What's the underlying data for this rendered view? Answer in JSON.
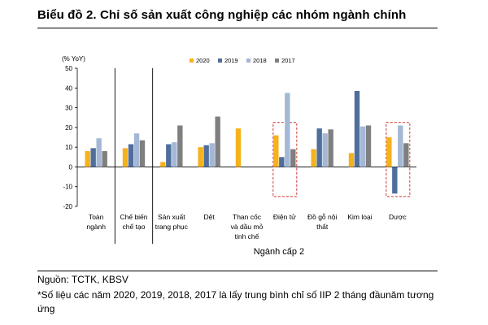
{
  "title": "Biểu đồ 2. Chỉ số sản xuất công nghiệp các nhóm ngành chính",
  "source": "Nguồn: TCTK, KBSV",
  "note": "*Số liệu các năm 2020, 2019, 2018, 2017 là lấy trung bình chỉ số IIP 2 tháng đầunăm tương ứng",
  "chart_data": {
    "type": "bar",
    "ylabel": "(% YoY)",
    "xlabel": "Ngành cấp 2",
    "ylim": [
      -20,
      50
    ],
    "yticks": [
      -20,
      -10,
      0,
      10,
      20,
      30,
      40,
      50
    ],
    "legend_position": "top",
    "grid": false,
    "categories": [
      [
        "Toàn",
        "ngành"
      ],
      [
        "Chế biến",
        "chế tạo"
      ],
      [
        "Sản xuất",
        "trang phục"
      ],
      [
        "Dệt"
      ],
      [
        "Than cốc",
        "và dầu mỏ",
        "tinh chế"
      ],
      [
        "Điện tử"
      ],
      [
        "Đồ gỗ nội",
        "thất"
      ],
      [
        "Kim loại"
      ],
      [
        "Dược"
      ]
    ],
    "series": [
      {
        "name": "2020",
        "color": "#F5B21B",
        "values": [
          8,
          9.5,
          2.5,
          10,
          19.5,
          16,
          9,
          7,
          15
        ]
      },
      {
        "name": "2019",
        "color": "#4F6E9B",
        "values": [
          9.5,
          11.5,
          11.5,
          11,
          0,
          5,
          19.5,
          38.5,
          -13.5
        ]
      },
      {
        "name": "2018",
        "color": "#A4B8D6",
        "values": [
          14.5,
          17,
          12.5,
          12,
          0,
          37.5,
          17,
          20.5,
          21
        ]
      },
      {
        "name": "2017",
        "color": "#7F7F7F",
        "values": [
          8,
          13.5,
          21,
          25.5,
          0,
          9,
          19,
          21,
          12
        ]
      }
    ],
    "highlighted_categories": [
      "Điện tử",
      "Dược"
    ]
  }
}
